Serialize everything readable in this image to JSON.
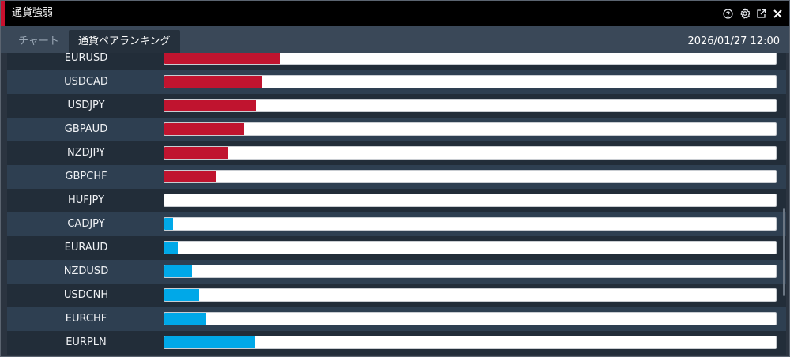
{
  "window": {
    "title": "通貨強弱",
    "accent_color": "#c8102e",
    "controls": [
      "help-icon",
      "settings-icon",
      "popout-icon",
      "close-icon"
    ]
  },
  "tabs": [
    {
      "label": "チャート",
      "active": false
    },
    {
      "label": "通貨ペアランキング",
      "active": true
    }
  ],
  "timestamp": "2026/01/27 12:00",
  "colors": {
    "negative": "#c0142f",
    "positive": "#00a8e8"
  },
  "ranking": [
    {
      "pair": "EURUSD",
      "direction": "negative",
      "level_pct": 19
    },
    {
      "pair": "USDCAD",
      "direction": "negative",
      "level_pct": 16
    },
    {
      "pair": "USDJPY",
      "direction": "negative",
      "level_pct": 15
    },
    {
      "pair": "GBPAUD",
      "direction": "negative",
      "level_pct": 13
    },
    {
      "pair": "NZDJPY",
      "direction": "negative",
      "level_pct": 10.5
    },
    {
      "pair": "GBPCHF",
      "direction": "negative",
      "level_pct": 8.5
    },
    {
      "pair": "HUFJPY",
      "direction": "negative",
      "level_pct": 0
    },
    {
      "pair": "CADJPY",
      "direction": "positive",
      "level_pct": 1.4
    },
    {
      "pair": "EURAUD",
      "direction": "positive",
      "level_pct": 2.2
    },
    {
      "pair": "NZDUSD",
      "direction": "positive",
      "level_pct": 4.5
    },
    {
      "pair": "USDCNH",
      "direction": "positive",
      "level_pct": 5.7
    },
    {
      "pair": "EURCHF",
      "direction": "positive",
      "level_pct": 6.9
    },
    {
      "pair": "EURPLN",
      "direction": "positive",
      "level_pct": 14.8
    }
  ]
}
